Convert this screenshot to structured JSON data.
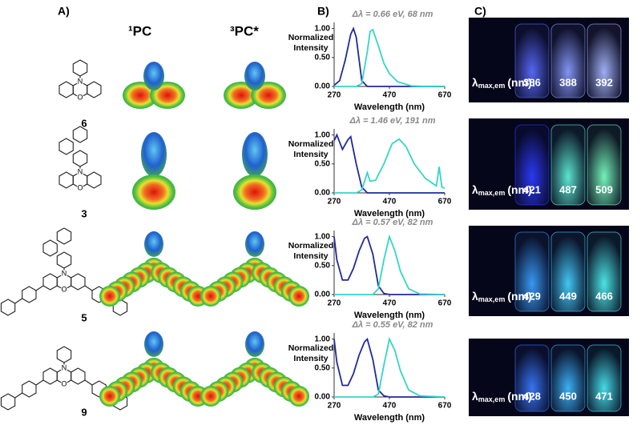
{
  "panel_labels": [
    "A)",
    "B)",
    "C)"
  ],
  "column_headers": [
    "¹PC",
    "³PC*"
  ],
  "compounds": [
    "6",
    "3",
    "5",
    "9"
  ],
  "structure_atoms": [
    "N",
    "O"
  ],
  "chart_data": [
    {
      "type": "line",
      "annotation": "Δλ = 0.66 eV, 68 nm",
      "xlabel": "Wavelength (nm)",
      "ylabel": [
        "Normalized",
        "Intensity"
      ],
      "xlim": [
        270,
        670
      ],
      "xticks": [
        270,
        470,
        670
      ],
      "ylim": [
        0,
        1.05
      ],
      "yticks": [
        {
          "value": 0,
          "label": "0.00"
        },
        {
          "value": 0.5,
          "label": "0.50"
        },
        {
          "value": 1,
          "label": "1.00"
        }
      ],
      "x": [
        270,
        290,
        310,
        330,
        340,
        350,
        370,
        390,
        400,
        410,
        430,
        450,
        470,
        500,
        550,
        600,
        670
      ],
      "series": [
        {
          "color": "#1f2a9c",
          "values": [
            0.02,
            0.1,
            0.45,
            0.9,
            1.0,
            0.85,
            0.1,
            0,
            0,
            0,
            0,
            0,
            0,
            0,
            0,
            0,
            0
          ]
        },
        {
          "color": "#35d6c6",
          "values": [
            0,
            0,
            0,
            0,
            0,
            0,
            0.05,
            0.6,
            0.95,
            0.98,
            0.7,
            0.4,
            0.22,
            0.08,
            0.01,
            0,
            0
          ]
        }
      ]
    },
    {
      "type": "line",
      "annotation": "Δλ =  1.46 eV, 191 nm",
      "xlabel": "Wavelength (nm)",
      "ylabel": [
        "Normalized",
        "Intensity"
      ],
      "xlim": [
        270,
        670
      ],
      "xticks": [
        270,
        470,
        670
      ],
      "ylim": [
        0,
        1.05
      ],
      "yticks": [
        {
          "value": 0,
          "label": "0.00"
        },
        {
          "value": 0.5,
          "label": "0.50"
        },
        {
          "value": 1,
          "label": "1.00"
        }
      ],
      "x": [
        270,
        280,
        300,
        320,
        330,
        350,
        370,
        390,
        400,
        420,
        450,
        480,
        505,
        530,
        560,
        600,
        640,
        650,
        660,
        670
      ],
      "series": [
        {
          "color": "#1f2a9c",
          "values": [
            0.9,
            1.0,
            0.75,
            0.92,
            0.97,
            0.5,
            0.1,
            0,
            0,
            0,
            0,
            0,
            0,
            0,
            0,
            0,
            0,
            0,
            0,
            0
          ]
        },
        {
          "color": "#35d6c6",
          "values": [
            0,
            0,
            0,
            0,
            0,
            0,
            0.05,
            0.35,
            0.2,
            0.22,
            0.5,
            0.85,
            0.93,
            0.8,
            0.5,
            0.25,
            0.12,
            0.45,
            0.1,
            0.08
          ]
        }
      ]
    },
    {
      "type": "line",
      "annotation": "Δλ = 0.57 eV, 82 nm",
      "xlabel": "Wavelength (nm)",
      "ylabel": [
        "Normalized",
        "Intensity"
      ],
      "xlim": [
        270,
        670
      ],
      "xticks": [
        270,
        470,
        670
      ],
      "ylim": [
        0,
        1.05
      ],
      "yticks": [
        {
          "value": 0,
          "label": "0.00"
        },
        {
          "value": 0.5,
          "label": "0.50"
        },
        {
          "value": 1,
          "label": "1.00"
        }
      ],
      "x": [
        270,
        280,
        300,
        320,
        340,
        360,
        380,
        390,
        410,
        430,
        450,
        470,
        490,
        510,
        540,
        580,
        670
      ],
      "series": [
        {
          "color": "#1f2a9c",
          "values": [
            1.0,
            0.6,
            0.25,
            0.25,
            0.45,
            0.75,
            0.97,
            1.0,
            0.7,
            0.15,
            0.02,
            0,
            0,
            0,
            0,
            0,
            0
          ]
        },
        {
          "color": "#35d6c6",
          "values": [
            0,
            0,
            0,
            0,
            0,
            0,
            0,
            0,
            0,
            0.1,
            0.6,
            1.0,
            0.75,
            0.4,
            0.1,
            0.01,
            0
          ]
        }
      ]
    },
    {
      "type": "line",
      "annotation": "Δλ = 0.55 eV, 82 nm",
      "xlabel": "Wavelength (nm)",
      "ylabel": [
        "Normalized",
        "Intensity"
      ],
      "xlim": [
        270,
        670
      ],
      "xticks": [
        270,
        470,
        670
      ],
      "ylim": [
        0,
        1.05
      ],
      "yticks": [
        {
          "value": 0,
          "label": "0.00"
        },
        {
          "value": 0.5,
          "label": "0.50"
        },
        {
          "value": 1,
          "label": "1.00"
        }
      ],
      "x": [
        270,
        280,
        300,
        320,
        340,
        360,
        380,
        390,
        410,
        430,
        450,
        470,
        490,
        510,
        540,
        580,
        670
      ],
      "series": [
        {
          "color": "#1f2a9c",
          "values": [
            1.0,
            0.6,
            0.2,
            0.2,
            0.4,
            0.72,
            0.95,
            1.0,
            0.65,
            0.12,
            0.02,
            0,
            0,
            0,
            0,
            0,
            0
          ]
        },
        {
          "color": "#35d6c6",
          "values": [
            0,
            0,
            0,
            0,
            0,
            0,
            0,
            0,
            0,
            0.05,
            0.55,
            1.0,
            0.8,
            0.45,
            0.12,
            0.02,
            0
          ]
        }
      ]
    }
  ],
  "photos": [
    {
      "symbol": "λ",
      "subscript": "max,em",
      "unit": "(nm):",
      "values": [
        386,
        388,
        392
      ],
      "vial_colors": [
        "#5a6cff",
        "#8a9cff",
        "#a8b8ff"
      ]
    },
    {
      "symbol": "λ",
      "subscript": "max,em",
      "unit": "(nm):",
      "values": [
        421,
        487,
        509
      ],
      "vial_colors": [
        "#2d3cff",
        "#5ff0d8",
        "#7affc0"
      ]
    },
    {
      "symbol": "λ",
      "subscript": "max,em",
      "unit": "(nm):",
      "values": [
        429,
        449,
        466
      ],
      "vial_colors": [
        "#3aa0ff",
        "#46d0ff",
        "#4ff0f0"
      ]
    },
    {
      "symbol": "λ",
      "subscript": "max,em",
      "unit": "(nm):",
      "values": [
        428,
        450,
        471
      ],
      "vial_colors": [
        "#3a7aff",
        "#3fb8ff",
        "#48e6f2"
      ]
    }
  ]
}
